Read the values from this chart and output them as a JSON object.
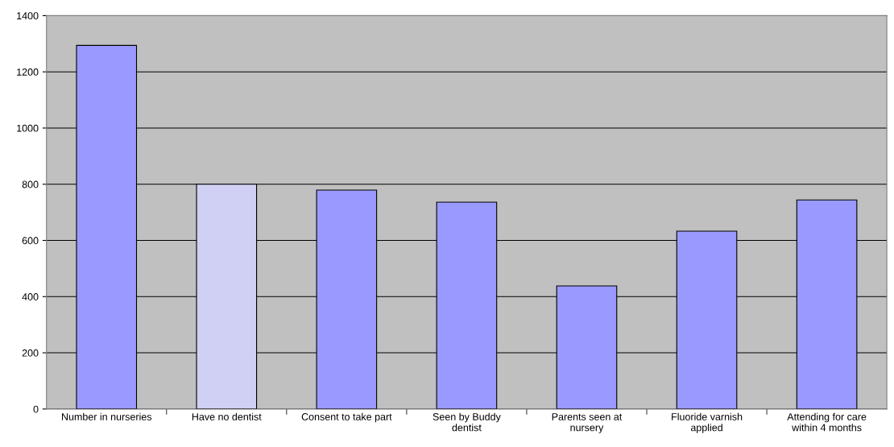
{
  "chart_data": {
    "type": "bar",
    "categories": [
      "Number in nurseries",
      "Have no dentist",
      "Consent to take part",
      "Seen by Buddy\ndentist",
      "Parents seen at\nnursery",
      "Fluoride varnish\napplied",
      "Attending for care\nwithin 4 months"
    ],
    "values": [
      1294,
      800,
      779,
      736,
      438,
      633,
      744
    ],
    "colors": [
      "#9999ff",
      "#d0d0f4",
      "#9999ff",
      "#9999ff",
      "#9999ff",
      "#9999ff",
      "#9999ff"
    ],
    "ylim": [
      0,
      1400
    ],
    "yticks": [
      0,
      200,
      400,
      600,
      800,
      1000,
      1200,
      1400
    ],
    "grid": "y"
  }
}
